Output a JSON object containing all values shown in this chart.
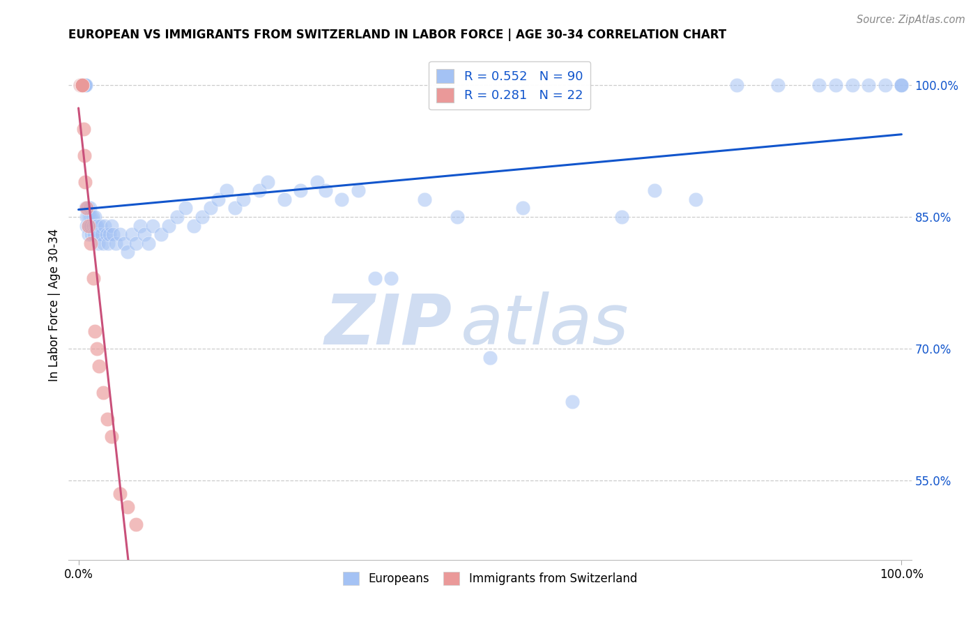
{
  "title": "EUROPEAN VS IMMIGRANTS FROM SWITZERLAND IN LABOR FORCE | AGE 30-34 CORRELATION CHART",
  "source": "Source: ZipAtlas.com",
  "ylabel": "In Labor Force | Age 30-34",
  "ytick_labels": [
    "55.0%",
    "70.0%",
    "85.0%",
    "100.0%"
  ],
  "ytick_values": [
    0.55,
    0.7,
    0.85,
    1.0
  ],
  "xlim": [
    0.0,
    1.0
  ],
  "ylim": [
    0.46,
    1.04
  ],
  "blue_R": 0.552,
  "blue_N": 90,
  "pink_R": 0.281,
  "pink_N": 22,
  "blue_color": "#a4c2f4",
  "pink_color": "#ea9999",
  "blue_line_color": "#1155cc",
  "pink_line_color": "#c9507a",
  "legend_blue_label": "Europeans",
  "legend_pink_label": "Immigrants from Switzerland",
  "watermark_zip": "ZIP",
  "watermark_atlas": "atlas",
  "blue_x": [
    0.002,
    0.003,
    0.004,
    0.005,
    0.005,
    0.006,
    0.007,
    0.007,
    0.008,
    0.008,
    0.009,
    0.009,
    0.01,
    0.01,
    0.011,
    0.011,
    0.012,
    0.012,
    0.013,
    0.014,
    0.015,
    0.015,
    0.016,
    0.017,
    0.018,
    0.019,
    0.02,
    0.021,
    0.022,
    0.023,
    0.024,
    0.025,
    0.027,
    0.028,
    0.03,
    0.032,
    0.034,
    0.036,
    0.038,
    0.04,
    0.042,
    0.045,
    0.05,
    0.055,
    0.06,
    0.065,
    0.07,
    0.075,
    0.08,
    0.085,
    0.09,
    0.1,
    0.11,
    0.12,
    0.13,
    0.14,
    0.15,
    0.16,
    0.17,
    0.18,
    0.19,
    0.2,
    0.22,
    0.23,
    0.25,
    0.27,
    0.29,
    0.3,
    0.32,
    0.34,
    0.36,
    0.38,
    0.42,
    0.46,
    0.5,
    0.54,
    0.6,
    0.66,
    0.7,
    0.75,
    0.8,
    0.85,
    0.9,
    0.92,
    0.94,
    0.96,
    0.98,
    1.0,
    1.0,
    1.0
  ],
  "blue_y": [
    1.0,
    1.0,
    1.0,
    1.0,
    1.0,
    1.0,
    1.0,
    1.0,
    1.0,
    1.0,
    1.0,
    0.86,
    0.85,
    0.84,
    0.86,
    0.85,
    0.84,
    0.83,
    0.85,
    0.86,
    0.85,
    0.84,
    0.83,
    0.85,
    0.84,
    0.83,
    0.85,
    0.84,
    0.84,
    0.83,
    0.82,
    0.83,
    0.84,
    0.83,
    0.82,
    0.84,
    0.83,
    0.82,
    0.83,
    0.84,
    0.83,
    0.82,
    0.83,
    0.82,
    0.81,
    0.83,
    0.82,
    0.84,
    0.83,
    0.82,
    0.84,
    0.83,
    0.84,
    0.85,
    0.86,
    0.84,
    0.85,
    0.86,
    0.87,
    0.88,
    0.86,
    0.87,
    0.88,
    0.89,
    0.87,
    0.88,
    0.89,
    0.88,
    0.87,
    0.88,
    0.78,
    0.78,
    0.87,
    0.85,
    0.69,
    0.86,
    0.64,
    0.85,
    0.88,
    0.87,
    1.0,
    1.0,
    1.0,
    1.0,
    1.0,
    1.0,
    1.0,
    1.0,
    1.0,
    1.0
  ],
  "pink_x": [
    0.002,
    0.003,
    0.004,
    0.004,
    0.005,
    0.005,
    0.006,
    0.007,
    0.008,
    0.01,
    0.012,
    0.015,
    0.018,
    0.02,
    0.022,
    0.025,
    0.03,
    0.035,
    0.04,
    0.05,
    0.06,
    0.07
  ],
  "pink_y": [
    1.0,
    1.0,
    1.0,
    1.0,
    1.0,
    1.0,
    0.95,
    0.92,
    0.89,
    0.86,
    0.84,
    0.82,
    0.78,
    0.72,
    0.7,
    0.68,
    0.65,
    0.62,
    0.6,
    0.535,
    0.52,
    0.5
  ],
  "blue_trend": [
    0.0,
    1.0,
    0.825,
    1.005
  ],
  "pink_trend": [
    0.0,
    0.075,
    1.04,
    0.78
  ]
}
